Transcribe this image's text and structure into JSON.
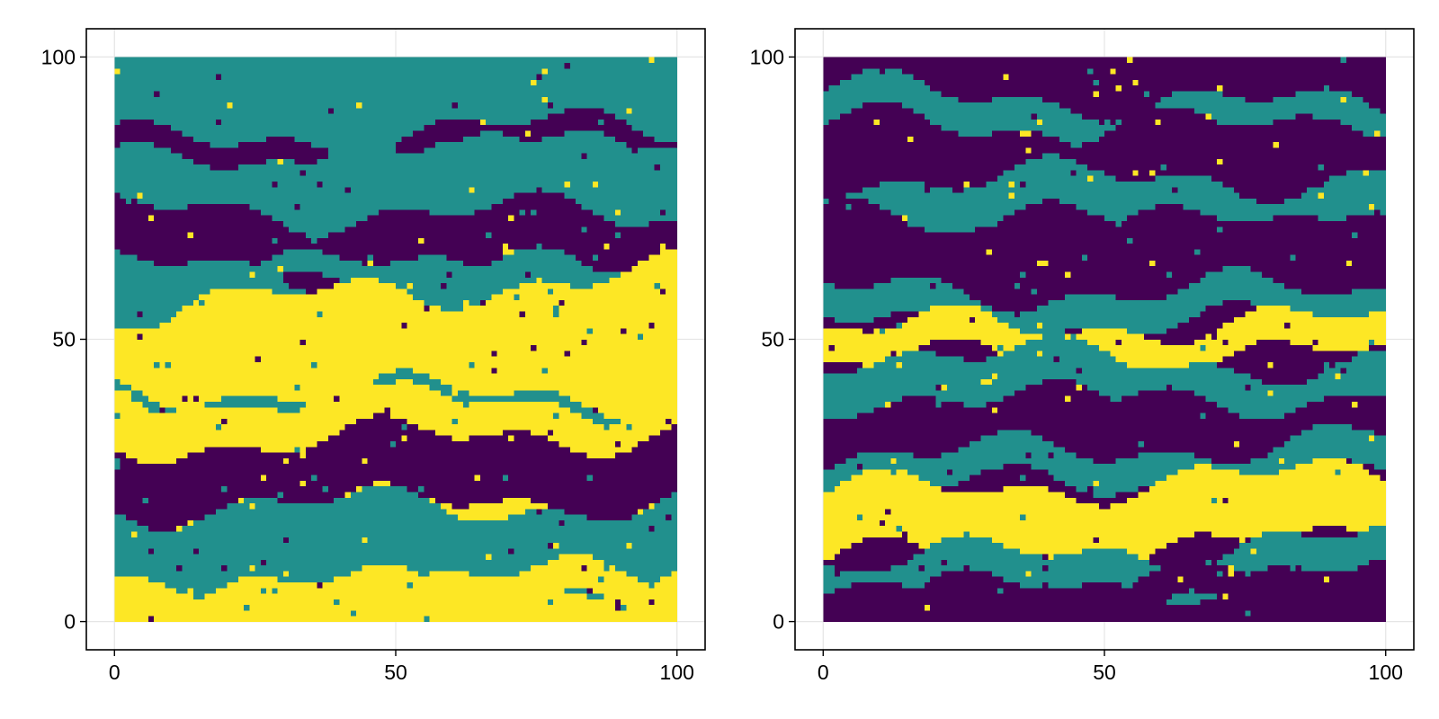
{
  "colors": {
    "background": "#ffffff",
    "frame": "#000000",
    "grid": "#e5e5e5",
    "facies": [
      "#440154",
      "#21908d",
      "#fde725"
    ]
  },
  "chart_data": [
    {
      "type": "heatmap",
      "title": "",
      "xlabel": "",
      "ylabel": "",
      "xlim": [
        -5,
        105
      ],
      "ylim": [
        -5,
        105
      ],
      "x_ticks": [
        0,
        50,
        100
      ],
      "y_ticks": [
        0,
        50,
        100
      ],
      "x_tick_labels": [
        "0",
        "50",
        "100"
      ],
      "y_tick_labels": [
        "0",
        "50",
        "100"
      ],
      "grid": true,
      "legend": "none",
      "categories": [
        0,
        1,
        2
      ],
      "band_unit": "grid cells",
      "bands": [
        [
          0,
          6,
          2
        ],
        [
          6,
          20,
          1
        ],
        [
          20,
          32,
          0
        ],
        [
          32,
          38,
          2
        ],
        [
          38,
          40,
          1
        ],
        [
          40,
          58,
          2
        ],
        [
          58,
          62,
          1
        ],
        [
          62,
          72,
          0
        ],
        [
          72,
          82,
          1
        ],
        [
          82,
          86,
          0
        ],
        [
          86,
          100,
          1
        ]
      ]
    },
    {
      "type": "heatmap",
      "title": "",
      "xlabel": "",
      "ylabel": "",
      "xlim": [
        -5,
        105
      ],
      "ylim": [
        -5,
        105
      ],
      "x_ticks": [
        0,
        50,
        100
      ],
      "y_ticks": [
        0,
        50,
        100
      ],
      "x_tick_labels": [
        "0",
        "50",
        "100"
      ],
      "y_tick_labels": [
        "0",
        "50",
        "100"
      ],
      "grid": true,
      "legend": "none",
      "categories": [
        0,
        1,
        2
      ],
      "band_unit": "grid cells",
      "bands": [
        [
          0,
          6,
          0
        ],
        [
          6,
          12,
          1
        ],
        [
          12,
          24,
          2
        ],
        [
          24,
          30,
          1
        ],
        [
          30,
          38,
          0
        ],
        [
          38,
          46,
          1
        ],
        [
          46,
          52,
          2
        ],
        [
          52,
          58,
          1
        ],
        [
          58,
          70,
          0
        ],
        [
          70,
          78,
          1
        ],
        [
          78,
          86,
          0
        ],
        [
          86,
          92,
          1
        ],
        [
          92,
          100,
          0
        ]
      ]
    }
  ]
}
